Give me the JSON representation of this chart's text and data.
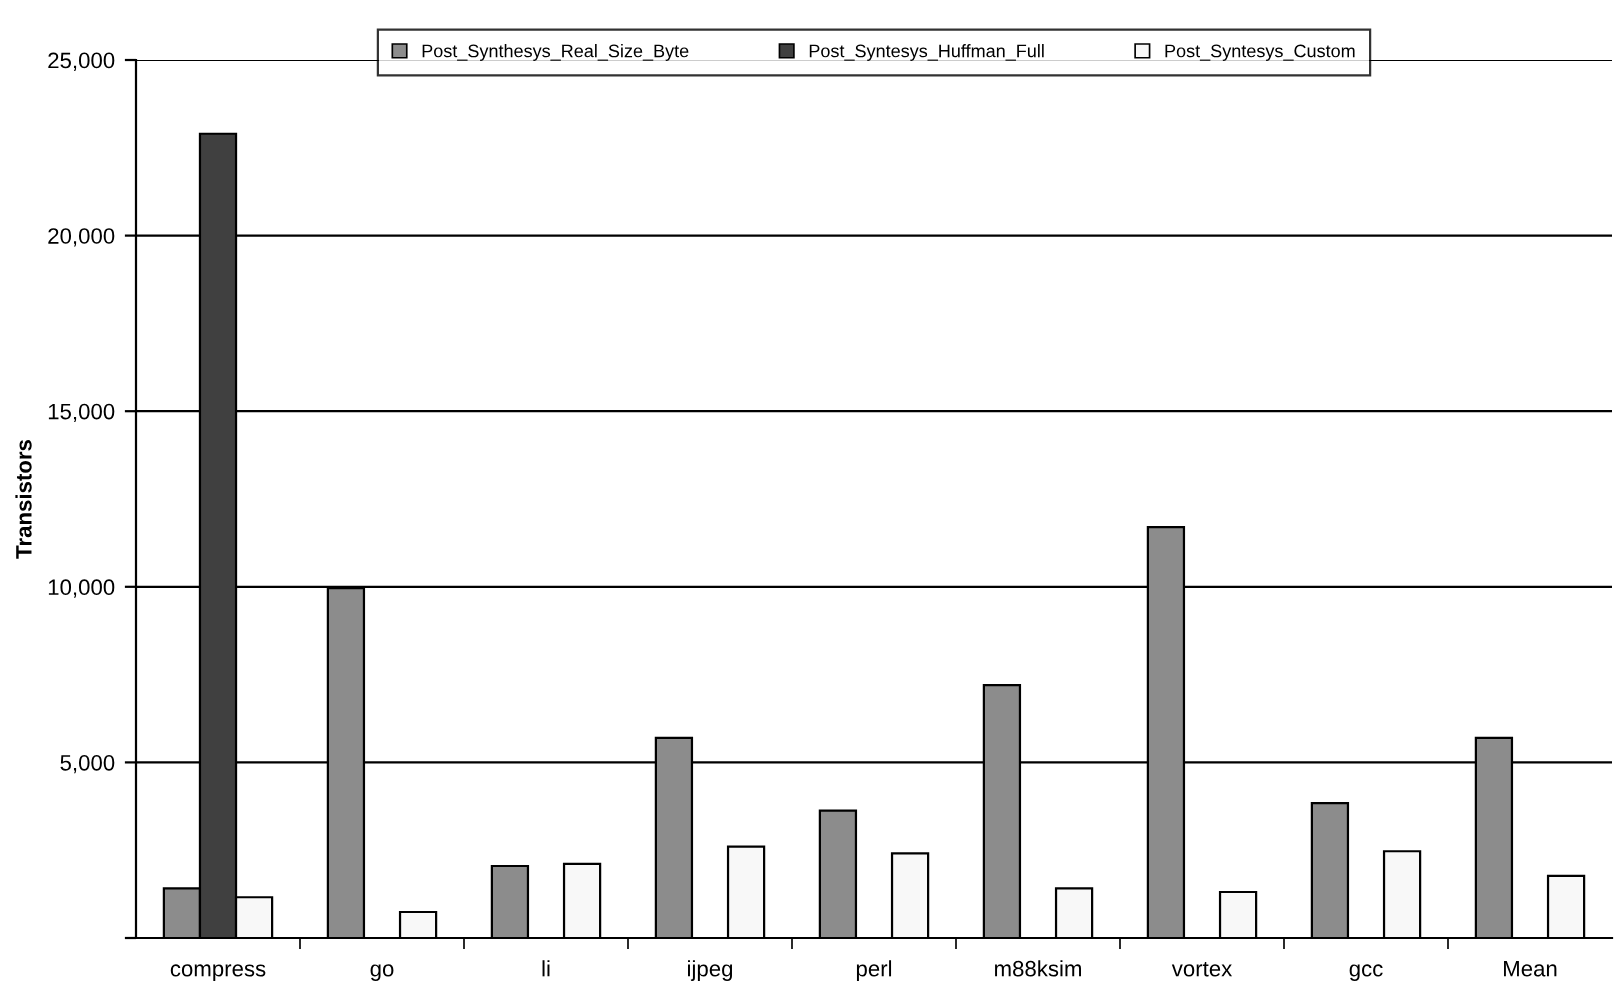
{
  "chart_data": {
    "type": "bar",
    "ylabel": "Transistors",
    "categories": [
      "compress",
      "go",
      "li",
      "ijpeg",
      "perl",
      "m88ksim",
      "vortex",
      "gcc",
      "Mean"
    ],
    "series": [
      {
        "name": "Post_Synthesys_Real_Size_Byte",
        "color": "#8c8c8c",
        "values": [
          1410,
          9960,
          2050,
          5700,
          3630,
          7200,
          11700,
          3840,
          5700
        ]
      },
      {
        "name": "Post_Syntesys_Huffman_Full",
        "color": "#404040",
        "values": [
          22900,
          null,
          null,
          null,
          null,
          null,
          null,
          null,
          null
        ]
      },
      {
        "name": "Post_Syntesys_Custom",
        "color": "#f8f8f8",
        "values": [
          1160,
          740,
          2110,
          2600,
          2410,
          1410,
          1310,
          2470,
          1770
        ]
      }
    ],
    "ylim": [
      0,
      25000
    ],
    "yticks": [
      {
        "value": 0,
        "label": null
      },
      {
        "value": 5000,
        "label": "5,000"
      },
      {
        "value": 10000,
        "label": "10,000"
      },
      {
        "value": 15000,
        "label": "15,000"
      },
      {
        "value": 20000,
        "label": "20,000"
      },
      {
        "value": 25000,
        "label": "25,000"
      }
    ],
    "grid": "y",
    "legend": "top"
  }
}
